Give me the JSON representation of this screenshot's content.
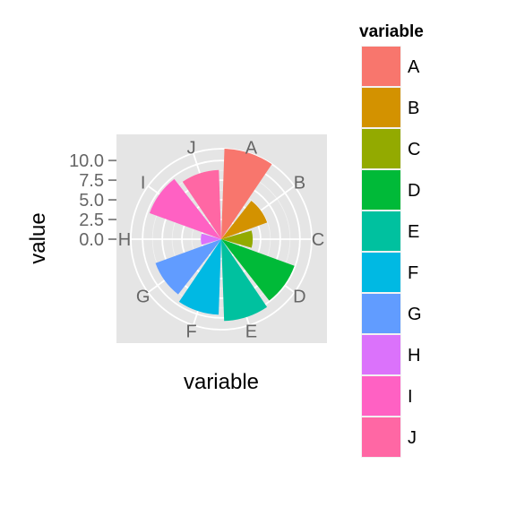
{
  "chart_data": {
    "type": "bar",
    "coord": "polar",
    "categories": [
      "A",
      "B",
      "C",
      "D",
      "E",
      "F",
      "G",
      "H",
      "I",
      "J"
    ],
    "values": [
      11.5,
      6.2,
      4.0,
      9.9,
      10.4,
      9.6,
      8.9,
      2.6,
      9.7,
      8.8
    ],
    "xlabel": "variable",
    "ylabel": "value",
    "yticks": [
      "0.0",
      "2.5",
      "5.0",
      "7.5",
      "10.0"
    ],
    "ytick_values": [
      0,
      2.5,
      5,
      7.5,
      10
    ],
    "ylim": [
      0,
      11.5
    ],
    "grid": true,
    "legend": {
      "title": "variable",
      "position": "right",
      "entries": [
        "A",
        "B",
        "C",
        "D",
        "E",
        "F",
        "G",
        "H",
        "I",
        "J"
      ]
    },
    "colors": [
      "#F8766D",
      "#D39200",
      "#93AA00",
      "#00BA38",
      "#00C19F",
      "#00B9E3",
      "#619CFF",
      "#DB72FB",
      "#FF61C3",
      "#FF67A4"
    ]
  }
}
